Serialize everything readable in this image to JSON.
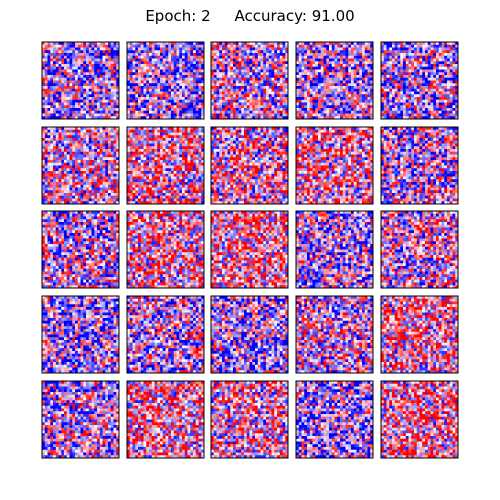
{
  "title": {
    "epoch_label": "Epoch:",
    "epoch": "2",
    "accuracy_label": "Accuracy:",
    "accuracy": "91.00"
  },
  "chart_data": {
    "type": "heatmap",
    "layout": {
      "rows": 5,
      "cols": 5
    },
    "cell_grid": {
      "rows": 28,
      "cols": 28
    },
    "colormap": "bwr",
    "colors": {
      "low": "#0000ff",
      "mid": "#ffffff",
      "high": "#ff0000"
    },
    "axes_ticks": false,
    "grid": false,
    "frame_color": "#000000"
  }
}
